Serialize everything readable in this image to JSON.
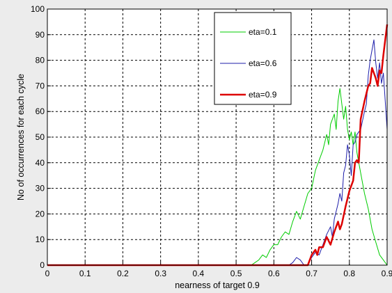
{
  "chart_data": {
    "type": "line",
    "xlabel": "nearness of target 0.9",
    "ylabel": "No of occurrences for each cycle",
    "xlim": [
      0,
      0.9
    ],
    "ylim": [
      0,
      100
    ],
    "xticks": [
      "0",
      "0.1",
      "0.2",
      "0.3",
      "0.4",
      "0.5",
      "0.6",
      "0.7",
      "0.8",
      "0.9"
    ],
    "yticks": [
      "0",
      "10",
      "20",
      "30",
      "40",
      "50",
      "60",
      "70",
      "80",
      "90",
      "100"
    ],
    "grid": true,
    "legend_position": "top-right",
    "series": [
      {
        "name": "eta=0.1",
        "color": "#00cc00",
        "points": [
          [
            0,
            0
          ],
          [
            0.54,
            0
          ],
          [
            0.55,
            1
          ],
          [
            0.56,
            2
          ],
          [
            0.57,
            4
          ],
          [
            0.58,
            3
          ],
          [
            0.59,
            6
          ],
          [
            0.6,
            8
          ],
          [
            0.61,
            8
          ],
          [
            0.62,
            11
          ],
          [
            0.63,
            13
          ],
          [
            0.64,
            12
          ],
          [
            0.65,
            17
          ],
          [
            0.66,
            21
          ],
          [
            0.67,
            18
          ],
          [
            0.68,
            23
          ],
          [
            0.69,
            28
          ],
          [
            0.7,
            30
          ],
          [
            0.71,
            37
          ],
          [
            0.72,
            41
          ],
          [
            0.73,
            45
          ],
          [
            0.74,
            51
          ],
          [
            0.745,
            47
          ],
          [
            0.75,
            55
          ],
          [
            0.76,
            59
          ],
          [
            0.765,
            53
          ],
          [
            0.77,
            64
          ],
          [
            0.775,
            69
          ],
          [
            0.78,
            63
          ],
          [
            0.785,
            57
          ],
          [
            0.79,
            62
          ],
          [
            0.795,
            53
          ],
          [
            0.8,
            49
          ],
          [
            0.805,
            52
          ],
          [
            0.81,
            47
          ],
          [
            0.815,
            52
          ],
          [
            0.82,
            44
          ],
          [
            0.83,
            36
          ],
          [
            0.84,
            28
          ],
          [
            0.85,
            22
          ],
          [
            0.86,
            14
          ],
          [
            0.87,
            9
          ],
          [
            0.88,
            4
          ],
          [
            0.89,
            2
          ],
          [
            0.9,
            0
          ]
        ]
      },
      {
        "name": "eta=0.6",
        "color": "#1c1caa",
        "points": [
          [
            0,
            0
          ],
          [
            0.64,
            0
          ],
          [
            0.65,
            1
          ],
          [
            0.66,
            3
          ],
          [
            0.67,
            2
          ],
          [
            0.68,
            0
          ],
          [
            0.69,
            0
          ],
          [
            0.7,
            3
          ],
          [
            0.71,
            5
          ],
          [
            0.72,
            4
          ],
          [
            0.73,
            8
          ],
          [
            0.74,
            12
          ],
          [
            0.75,
            15
          ],
          [
            0.755,
            11
          ],
          [
            0.76,
            18
          ],
          [
            0.77,
            24
          ],
          [
            0.775,
            28
          ],
          [
            0.78,
            25
          ],
          [
            0.785,
            36
          ],
          [
            0.79,
            39
          ],
          [
            0.795,
            47
          ],
          [
            0.8,
            43
          ],
          [
            0.805,
            35
          ],
          [
            0.81,
            47
          ],
          [
            0.815,
            48
          ],
          [
            0.82,
            51
          ],
          [
            0.825,
            52
          ],
          [
            0.83,
            53
          ],
          [
            0.84,
            60
          ],
          [
            0.845,
            63
          ],
          [
            0.85,
            74
          ],
          [
            0.855,
            80
          ],
          [
            0.86,
            84
          ],
          [
            0.865,
            88
          ],
          [
            0.87,
            79
          ],
          [
            0.875,
            73
          ],
          [
            0.88,
            79
          ],
          [
            0.885,
            71
          ],
          [
            0.89,
            75
          ],
          [
            0.9,
            53
          ]
        ]
      },
      {
        "name": "eta=0.9",
        "color": "#dd0000",
        "points": [
          [
            0,
            0
          ],
          [
            0.69,
            0
          ],
          [
            0.7,
            4
          ],
          [
            0.71,
            6
          ],
          [
            0.715,
            4
          ],
          [
            0.72,
            7
          ],
          [
            0.73,
            7
          ],
          [
            0.74,
            11
          ],
          [
            0.75,
            8
          ],
          [
            0.76,
            13
          ],
          [
            0.77,
            17
          ],
          [
            0.775,
            14
          ],
          [
            0.78,
            16
          ],
          [
            0.79,
            23
          ],
          [
            0.8,
            29
          ],
          [
            0.81,
            33
          ],
          [
            0.815,
            40
          ],
          [
            0.82,
            41
          ],
          [
            0.825,
            40
          ],
          [
            0.83,
            57
          ],
          [
            0.84,
            64
          ],
          [
            0.85,
            70
          ],
          [
            0.855,
            71
          ],
          [
            0.86,
            77
          ],
          [
            0.865,
            75
          ],
          [
            0.87,
            73
          ],
          [
            0.875,
            70
          ],
          [
            0.88,
            76
          ],
          [
            0.885,
            75
          ],
          [
            0.89,
            82
          ],
          [
            0.9,
            94
          ]
        ]
      }
    ]
  }
}
